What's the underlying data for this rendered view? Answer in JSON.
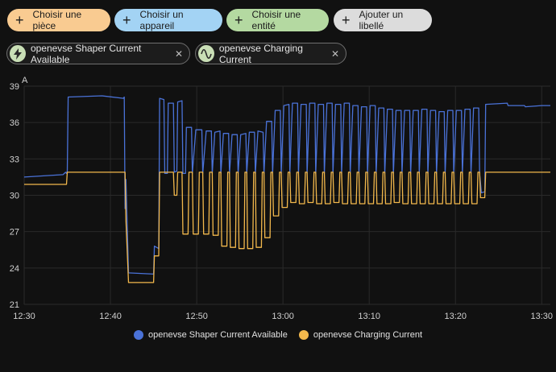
{
  "filter_chips": [
    {
      "label": "Choisir une pièce"
    },
    {
      "label": "Choisir un appareil"
    },
    {
      "label": "Choisir une entité"
    },
    {
      "label": "Ajouter un libellé"
    }
  ],
  "entity_chips": [
    {
      "label": "openevse Shaper Current Available",
      "icon": "lightning-icon"
    },
    {
      "label": "openevse Charging Current",
      "icon": "sine-wave-icon"
    }
  ],
  "colors": {
    "blue": "#4a72d8",
    "yellow": "#f2b84c",
    "grid": "#2a2a2a"
  },
  "chart_data": {
    "type": "line",
    "unit_label": "A",
    "ylim": [
      21,
      39
    ],
    "yticks": [
      "39",
      "36",
      "33",
      "30",
      "27",
      "24",
      "21"
    ],
    "xticks": [
      "12:30",
      "12:40",
      "12:50",
      "13:00",
      "13:10",
      "13:20",
      "13:30"
    ],
    "xlim_minutes": [
      0,
      61
    ],
    "series": [
      {
        "name": "openevse Shaper Current Available",
        "color": "#4a72d8",
        "points": [
          [
            0,
            31.5
          ],
          [
            4.5,
            31.7
          ],
          [
            4.8,
            31.9
          ],
          [
            4.9,
            31.8
          ],
          [
            5.0,
            32.0
          ],
          [
            5.1,
            38.1
          ],
          [
            9,
            38.2
          ],
          [
            11.5,
            38.0
          ],
          [
            11.6,
            38.1
          ],
          [
            11.7,
            28.9
          ],
          [
            11.8,
            31.3
          ],
          [
            12.1,
            23.6
          ],
          [
            15,
            23.5
          ],
          [
            15.1,
            25.8
          ],
          [
            15.6,
            25.6
          ],
          [
            15.7,
            38.0
          ],
          [
            16.2,
            37.9
          ],
          [
            16.3,
            31.8
          ],
          [
            16.6,
            31.8
          ],
          [
            16.7,
            37.6
          ],
          [
            17.3,
            37.6
          ],
          [
            17.4,
            31.9
          ],
          [
            17.7,
            32.0
          ],
          [
            17.8,
            37.7
          ],
          [
            18.3,
            37.8
          ],
          [
            18.4,
            31.8
          ],
          [
            18.7,
            31.8
          ],
          [
            18.8,
            35.6
          ],
          [
            19.4,
            35.6
          ],
          [
            19.5,
            31.8
          ],
          [
            19.9,
            35.4
          ],
          [
            20.6,
            35.4
          ],
          [
            20.7,
            31.8
          ],
          [
            21.1,
            35.3
          ],
          [
            21.7,
            35.3
          ],
          [
            21.8,
            31.8
          ],
          [
            22.1,
            35.2
          ],
          [
            22.7,
            35.3
          ],
          [
            22.8,
            31.8
          ],
          [
            23.1,
            35.1
          ],
          [
            23.7,
            35.1
          ],
          [
            23.8,
            31.8
          ],
          [
            24.1,
            35.0
          ],
          [
            24.7,
            35.0
          ],
          [
            24.8,
            31.8
          ],
          [
            25.1,
            35.0
          ],
          [
            25.7,
            35.1
          ],
          [
            25.8,
            31.8
          ],
          [
            26.1,
            35.2
          ],
          [
            26.7,
            35.2
          ],
          [
            26.8,
            31.8
          ],
          [
            27.1,
            35.3
          ],
          [
            27.7,
            35.2
          ],
          [
            27.8,
            31.8
          ],
          [
            28.1,
            36.1
          ],
          [
            28.7,
            36.1
          ],
          [
            28.8,
            31.8
          ],
          [
            29.1,
            37.0
          ],
          [
            29.7,
            37.0
          ],
          [
            29.8,
            31.8
          ],
          [
            30.1,
            37.4
          ],
          [
            30.7,
            37.5
          ],
          [
            30.8,
            31.8
          ],
          [
            31.1,
            37.6
          ],
          [
            31.7,
            37.6
          ],
          [
            31.8,
            31.8
          ],
          [
            32.1,
            37.5
          ],
          [
            32.7,
            37.5
          ],
          [
            32.8,
            31.8
          ],
          [
            33.1,
            37.6
          ],
          [
            33.7,
            37.6
          ],
          [
            33.8,
            31.8
          ],
          [
            34.1,
            37.5
          ],
          [
            34.7,
            37.5
          ],
          [
            34.8,
            31.8
          ],
          [
            35.1,
            37.6
          ],
          [
            35.7,
            37.6
          ],
          [
            35.8,
            31.8
          ],
          [
            36.1,
            37.5
          ],
          [
            36.7,
            37.5
          ],
          [
            36.8,
            31.8
          ],
          [
            37.1,
            37.6
          ],
          [
            37.7,
            37.6
          ],
          [
            37.8,
            31.8
          ],
          [
            38.1,
            37.4
          ],
          [
            38.7,
            37.4
          ],
          [
            38.8,
            31.8
          ],
          [
            39.1,
            37.3
          ],
          [
            39.7,
            37.3
          ],
          [
            39.8,
            31.8
          ],
          [
            40.1,
            37.4
          ],
          [
            40.7,
            37.4
          ],
          [
            40.8,
            31.8
          ],
          [
            41.1,
            37.2
          ],
          [
            41.7,
            37.2
          ],
          [
            41.8,
            31.8
          ],
          [
            42.1,
            37.1
          ],
          [
            42.7,
            37.1
          ],
          [
            42.8,
            31.8
          ],
          [
            43.1,
            37.0
          ],
          [
            43.7,
            37.0
          ],
          [
            43.8,
            31.8
          ],
          [
            44.1,
            37.0
          ],
          [
            44.7,
            37.0
          ],
          [
            44.8,
            31.8
          ],
          [
            45.1,
            37.0
          ],
          [
            45.7,
            37.0
          ],
          [
            45.8,
            31.8
          ],
          [
            46.1,
            37.1
          ],
          [
            46.7,
            37.1
          ],
          [
            46.8,
            31.8
          ],
          [
            47.1,
            37.0
          ],
          [
            47.7,
            37.0
          ],
          [
            47.8,
            31.8
          ],
          [
            48.1,
            36.9
          ],
          [
            48.7,
            36.9
          ],
          [
            48.8,
            31.8
          ],
          [
            49.1,
            37.0
          ],
          [
            49.7,
            37.0
          ],
          [
            49.8,
            31.8
          ],
          [
            50.1,
            37.0
          ],
          [
            50.7,
            37.0
          ],
          [
            50.8,
            31.8
          ],
          [
            51.1,
            37.1
          ],
          [
            51.7,
            37.1
          ],
          [
            51.8,
            31.8
          ],
          [
            52.1,
            37.2
          ],
          [
            52.7,
            37.2
          ],
          [
            52.8,
            31.8
          ],
          [
            53.0,
            30.2
          ],
          [
            53.4,
            30.3
          ],
          [
            53.5,
            37.5
          ],
          [
            56,
            37.6
          ],
          [
            56.1,
            37.4
          ],
          [
            58,
            37.4
          ],
          [
            58.1,
            37.3
          ],
          [
            60,
            37.4
          ],
          [
            61,
            37.4
          ]
        ]
      },
      {
        "name": "openevse Charging Current",
        "color": "#f2b84c",
        "points": [
          [
            0,
            30.9
          ],
          [
            4.9,
            30.9
          ],
          [
            5.0,
            31.9
          ],
          [
            11.7,
            31.9
          ],
          [
            11.8,
            27.9
          ],
          [
            12.1,
            22.8
          ],
          [
            15.0,
            22.8
          ],
          [
            15.1,
            25.0
          ],
          [
            15.6,
            25.0
          ],
          [
            15.7,
            31.9
          ],
          [
            17.3,
            31.9
          ],
          [
            17.4,
            30.0
          ],
          [
            17.7,
            30.0
          ],
          [
            17.8,
            31.9
          ],
          [
            18.3,
            31.9
          ],
          [
            18.4,
            26.8
          ],
          [
            19.0,
            26.8
          ],
          [
            19.1,
            31.9
          ],
          [
            19.5,
            31.9
          ],
          [
            19.6,
            26.8
          ],
          [
            20.2,
            26.8
          ],
          [
            20.3,
            31.9
          ],
          [
            20.7,
            31.9
          ],
          [
            20.8,
            26.8
          ],
          [
            21.4,
            26.8
          ],
          [
            21.5,
            31.9
          ],
          [
            21.8,
            31.9
          ],
          [
            21.9,
            26.7
          ],
          [
            22.5,
            26.7
          ],
          [
            22.6,
            31.9
          ],
          [
            22.8,
            31.9
          ],
          [
            22.9,
            25.8
          ],
          [
            23.5,
            25.8
          ],
          [
            23.6,
            31.9
          ],
          [
            23.8,
            31.9
          ],
          [
            23.9,
            25.7
          ],
          [
            24.5,
            25.7
          ],
          [
            24.6,
            31.9
          ],
          [
            24.8,
            31.9
          ],
          [
            24.9,
            25.6
          ],
          [
            25.5,
            25.6
          ],
          [
            25.6,
            31.9
          ],
          [
            25.8,
            31.9
          ],
          [
            25.9,
            25.6
          ],
          [
            26.5,
            25.6
          ],
          [
            26.6,
            31.9
          ],
          [
            26.8,
            31.9
          ],
          [
            26.9,
            25.7
          ],
          [
            27.5,
            25.7
          ],
          [
            27.6,
            31.9
          ],
          [
            27.8,
            31.9
          ],
          [
            27.9,
            26.5
          ],
          [
            28.5,
            26.5
          ],
          [
            28.6,
            31.9
          ],
          [
            28.8,
            31.9
          ],
          [
            28.9,
            28.3
          ],
          [
            29.5,
            28.3
          ],
          [
            29.6,
            31.9
          ],
          [
            29.8,
            31.9
          ],
          [
            29.9,
            29.0
          ],
          [
            30.5,
            29.0
          ],
          [
            30.6,
            31.9
          ],
          [
            30.8,
            31.9
          ],
          [
            30.9,
            29.4
          ],
          [
            31.5,
            29.4
          ],
          [
            31.6,
            31.9
          ],
          [
            31.8,
            31.9
          ],
          [
            31.9,
            29.3
          ],
          [
            32.5,
            29.3
          ],
          [
            32.6,
            31.9
          ],
          [
            32.8,
            31.9
          ],
          [
            32.9,
            29.4
          ],
          [
            33.5,
            29.4
          ],
          [
            33.6,
            31.9
          ],
          [
            33.8,
            31.9
          ],
          [
            33.9,
            29.3
          ],
          [
            34.5,
            29.3
          ],
          [
            34.6,
            31.9
          ],
          [
            34.8,
            31.9
          ],
          [
            34.9,
            29.3
          ],
          [
            35.5,
            29.3
          ],
          [
            35.6,
            31.9
          ],
          [
            35.8,
            31.9
          ],
          [
            35.9,
            29.4
          ],
          [
            36.5,
            29.4
          ],
          [
            36.6,
            31.9
          ],
          [
            36.8,
            31.9
          ],
          [
            36.9,
            29.3
          ],
          [
            37.5,
            29.3
          ],
          [
            37.6,
            31.9
          ],
          [
            37.8,
            31.9
          ],
          [
            37.9,
            29.3
          ],
          [
            38.5,
            29.3
          ],
          [
            38.6,
            31.9
          ],
          [
            38.8,
            31.9
          ],
          [
            38.9,
            29.3
          ],
          [
            39.5,
            29.3
          ],
          [
            39.6,
            31.9
          ],
          [
            39.8,
            31.9
          ],
          [
            39.9,
            29.3
          ],
          [
            40.5,
            29.3
          ],
          [
            40.6,
            31.9
          ],
          [
            40.8,
            31.9
          ],
          [
            40.9,
            29.3
          ],
          [
            41.5,
            29.3
          ],
          [
            41.6,
            31.9
          ],
          [
            41.8,
            31.9
          ],
          [
            41.9,
            29.3
          ],
          [
            42.5,
            29.3
          ],
          [
            42.6,
            31.9
          ],
          [
            42.8,
            31.9
          ],
          [
            42.9,
            29.4
          ],
          [
            43.5,
            29.4
          ],
          [
            43.6,
            31.9
          ],
          [
            43.8,
            31.9
          ],
          [
            43.9,
            29.3
          ],
          [
            44.5,
            29.3
          ],
          [
            44.6,
            31.9
          ],
          [
            44.8,
            31.9
          ],
          [
            44.9,
            29.3
          ],
          [
            45.5,
            29.3
          ],
          [
            45.6,
            31.9
          ],
          [
            45.8,
            31.9
          ],
          [
            45.9,
            29.3
          ],
          [
            46.5,
            29.3
          ],
          [
            46.6,
            31.9
          ],
          [
            46.8,
            31.9
          ],
          [
            46.9,
            29.3
          ],
          [
            47.5,
            29.3
          ],
          [
            47.6,
            31.9
          ],
          [
            47.8,
            31.9
          ],
          [
            47.9,
            29.3
          ],
          [
            48.5,
            29.3
          ],
          [
            48.6,
            31.9
          ],
          [
            48.8,
            31.9
          ],
          [
            48.9,
            29.3
          ],
          [
            49.5,
            29.3
          ],
          [
            49.6,
            31.9
          ],
          [
            49.8,
            31.9
          ],
          [
            49.9,
            29.3
          ],
          [
            50.5,
            29.3
          ],
          [
            50.6,
            31.9
          ],
          [
            50.8,
            31.9
          ],
          [
            50.9,
            29.3
          ],
          [
            51.5,
            29.3
          ],
          [
            51.6,
            31.9
          ],
          [
            51.8,
            31.9
          ],
          [
            51.9,
            29.3
          ],
          [
            52.5,
            29.3
          ],
          [
            52.6,
            31.9
          ],
          [
            52.8,
            31.9
          ],
          [
            52.9,
            29.8
          ],
          [
            53.4,
            29.8
          ],
          [
            53.5,
            31.9
          ],
          [
            61,
            31.9
          ]
        ]
      }
    ]
  }
}
